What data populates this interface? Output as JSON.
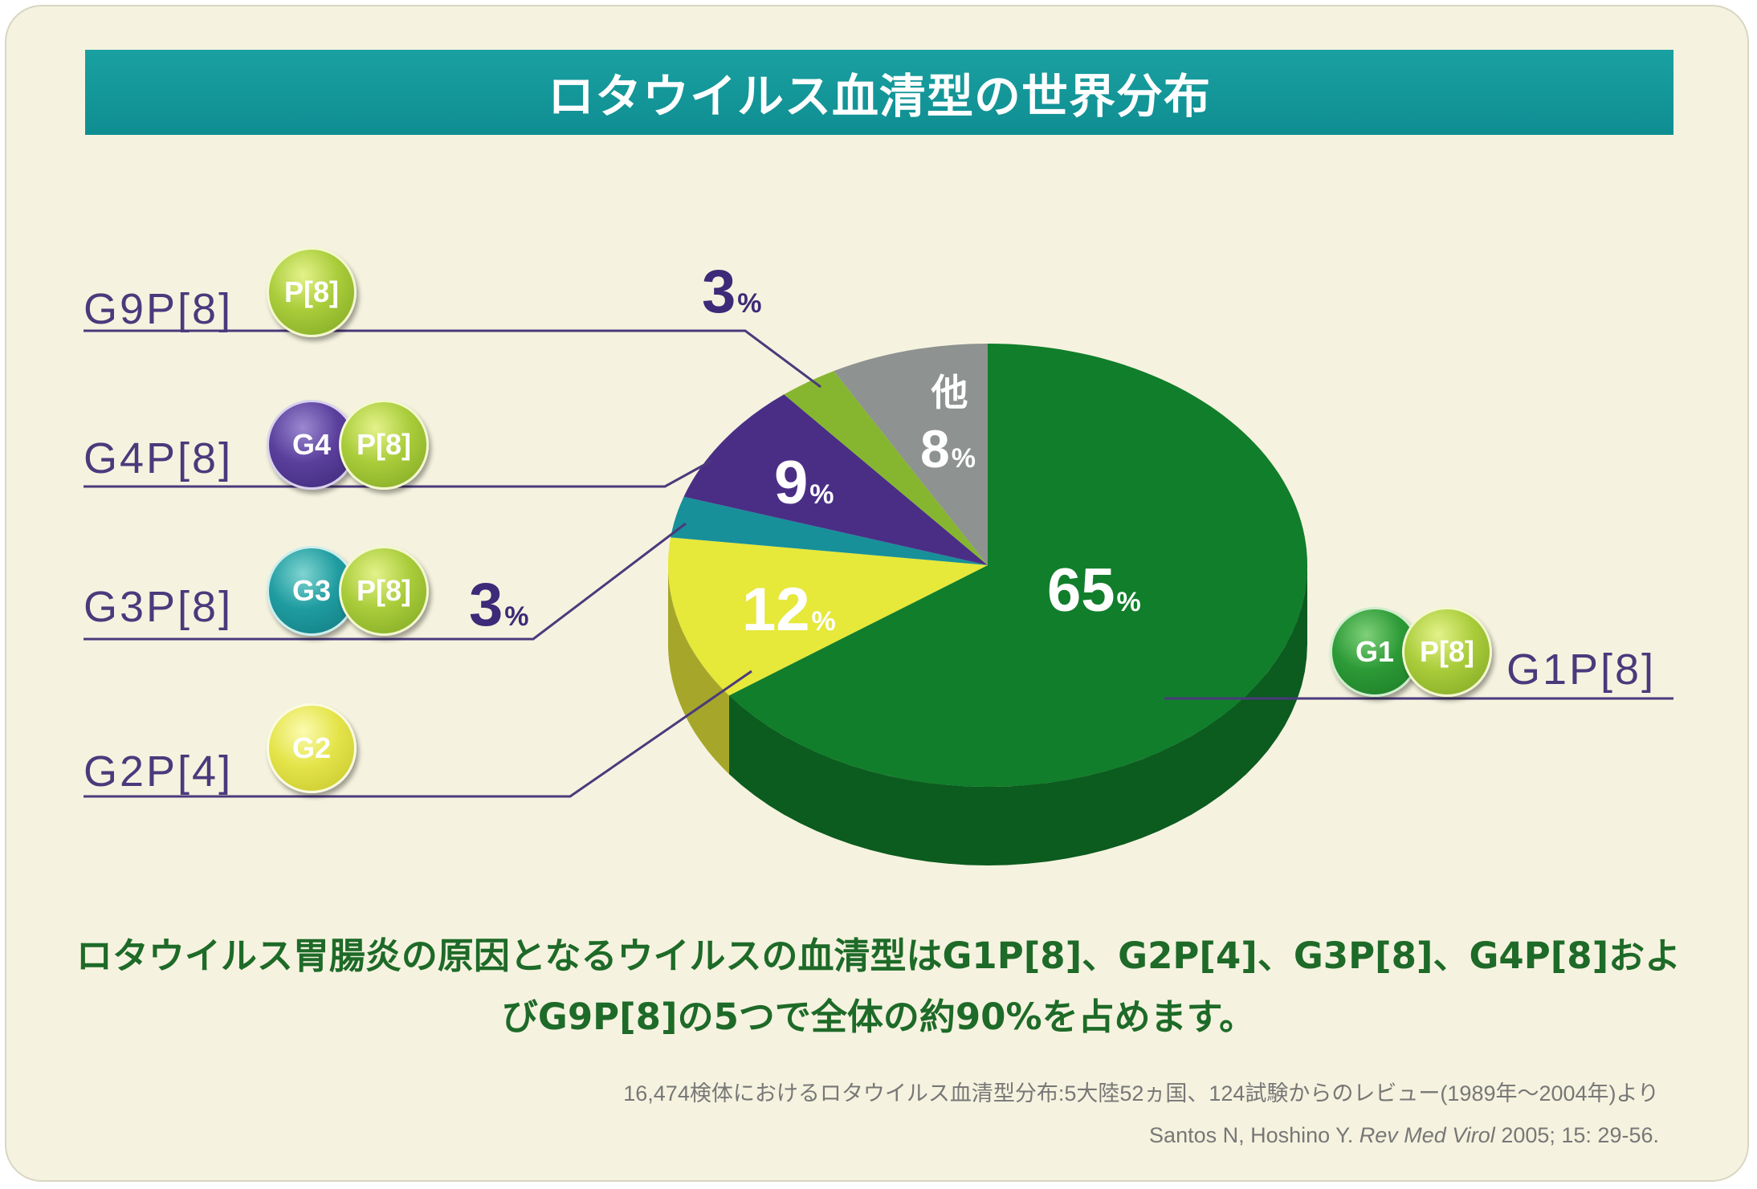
{
  "title": "ロタウイルス血清型の世界分布",
  "chart_data": {
    "type": "pie",
    "slices": [
      {
        "key": "g1p8",
        "label": "G1P[8]",
        "value": 65,
        "pct": "65",
        "color": "#117e2b"
      },
      {
        "key": "g2p4",
        "label": "G2P[4]",
        "value": 12,
        "pct": "12",
        "color": "#e6e83a"
      },
      {
        "key": "g3p8",
        "label": "G3P[8]",
        "value": 3,
        "pct": "3",
        "color": "#17909a"
      },
      {
        "key": "g4p8",
        "label": "G4P[8]",
        "value": 9,
        "pct": "9",
        "color": "#4a2e86"
      },
      {
        "key": "g9p8",
        "label": "G9P[8]",
        "value": 3,
        "pct": "3",
        "color": "#86b630"
      },
      {
        "key": "other",
        "label": "他",
        "value": 8,
        "pct": "8",
        "color": "#8e9290"
      }
    ],
    "unit": "%",
    "badges": {
      "g9p8": [
        "P[8]"
      ],
      "g4p8": [
        "G4",
        "P[8]"
      ],
      "g3p8": [
        "G3",
        "P[8]"
      ],
      "g2p4": [
        "G2"
      ],
      "g1p8": [
        "G1",
        "P[8]"
      ]
    }
  },
  "summary": {
    "line1": "ロタウイルス胃腸炎の原因となるウイルスの血清型はG1P[8]、G2P[4]、G3P[8]、G4P[8]およ",
    "line2": "びG9P[8]の5つで全体の約90%を占めます。"
  },
  "source": {
    "line1": "16,474検体におけるロタウイルス血清型分布:5大陸52ヵ国、124試験からのレビュー(1989年〜2004年)より",
    "authors": "Santos N, Hoshino Y.",
    "journal": "Rev Med Virol",
    "citation": "2005; 15: 29-56."
  }
}
